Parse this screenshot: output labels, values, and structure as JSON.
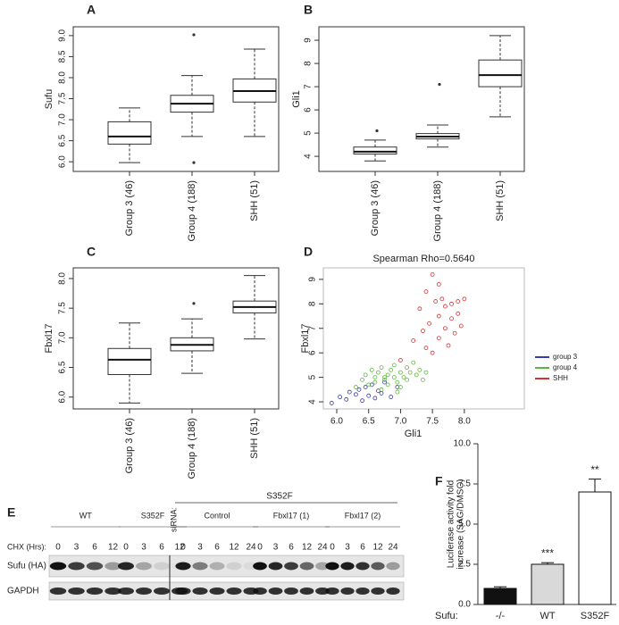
{
  "chart_data": [
    {
      "type": "box",
      "panel": "A",
      "ylabel": "Sufu",
      "categories": [
        "Group 3 (46)",
        "Group 4 (188)",
        "SHH (51)"
      ],
      "boxes": [
        {
          "whisker_low": 5.98,
          "q1": 6.42,
          "median": 6.6,
          "q3": 6.95,
          "whisker_high": 7.28,
          "outliers": []
        },
        {
          "whisker_low": 6.6,
          "q1": 7.18,
          "median": 7.38,
          "q3": 7.58,
          "whisker_high": 8.05,
          "outliers": [
            9.02,
            5.98
          ]
        },
        {
          "whisker_low": 6.6,
          "q1": 7.42,
          "median": 7.68,
          "q3": 7.97,
          "whisker_high": 8.68,
          "outliers": []
        }
      ],
      "ylim": [
        5.77,
        9.21
      ],
      "yticks": [
        {
          "value": 6,
          "label": "6.0"
        },
        6.5,
        {
          "value": 7,
          "label": "7.0"
        },
        7.5,
        {
          "value": 8,
          "label": "8.0"
        },
        8.5,
        {
          "value": 9,
          "label": "9.0"
        }
      ]
    },
    {
      "type": "box",
      "panel": "B",
      "ylabel": "Gli1",
      "categories": [
        "Group 3 (46)",
        "Group 4 (188)",
        "SHH (51)"
      ],
      "boxes": [
        {
          "whisker_low": 3.8,
          "q1": 4.1,
          "median": 4.2,
          "q3": 4.4,
          "whisker_high": 4.7,
          "outliers": [
            5.1
          ]
        },
        {
          "whisker_low": 4.4,
          "q1": 4.75,
          "median": 4.85,
          "q3": 4.98,
          "whisker_high": 5.35,
          "outliers": [
            7.1
          ]
        },
        {
          "whisker_low": 5.7,
          "q1": 7.0,
          "median": 7.5,
          "q3": 8.15,
          "whisker_high": 9.2,
          "outliers": []
        }
      ],
      "ylim": [
        3.35,
        9.58
      ],
      "yticks": [
        4,
        5,
        6,
        7,
        8,
        9
      ]
    },
    {
      "type": "box",
      "panel": "C",
      "ylabel": "Fbxl17",
      "categories": [
        "Group 3 (46)",
        "Group 4 (188)",
        "SHH (51)"
      ],
      "boxes": [
        {
          "whisker_low": 5.9,
          "q1": 6.38,
          "median": 6.63,
          "q3": 6.82,
          "whisker_high": 7.25,
          "outliers": []
        },
        {
          "whisker_low": 6.4,
          "q1": 6.78,
          "median": 6.88,
          "q3": 7.0,
          "whisker_high": 7.32,
          "outliers": [
            7.58
          ]
        },
        {
          "whisker_low": 6.98,
          "q1": 7.42,
          "median": 7.52,
          "q3": 7.62,
          "whisker_high": 8.05,
          "outliers": []
        }
      ],
      "ylim": [
        5.8,
        8.18
      ],
      "yticks": [
        {
          "value": 6,
          "label": "6.0"
        },
        6.5,
        {
          "value": 7,
          "label": "7.0"
        },
        7.5,
        {
          "value": 8,
          "label": "8.0"
        }
      ]
    },
    {
      "type": "scatter",
      "panel": "D",
      "title": "Spearman Rho=0.5640",
      "xlabel": "Gli1",
      "ylabel": "Fbxl17",
      "series": [
        {
          "name": "group 3",
          "color": "#3b3bb3",
          "x": [
            5.92,
            6.05,
            6.15,
            6.2,
            6.3,
            6.35,
            6.4,
            6.45,
            6.5,
            6.55,
            6.6,
            6.65,
            6.7,
            6.75,
            6.85,
            6.95
          ],
          "values": [
            3.95,
            4.2,
            4.1,
            4.4,
            4.3,
            4.5,
            4.05,
            4.6,
            4.25,
            4.7,
            4.15,
            4.45,
            4.35,
            4.8,
            4.2,
            4.6
          ]
        },
        {
          "name": "group 4",
          "color": "#5cb83a",
          "x": [
            6.3,
            6.4,
            6.45,
            6.5,
            6.55,
            6.6,
            6.6,
            6.65,
            6.7,
            6.7,
            6.75,
            6.8,
            6.8,
            6.85,
            6.9,
            6.9,
            6.95,
            7.0,
            7.0,
            7.05,
            7.1,
            7.1,
            7.15,
            7.2,
            7.25,
            7.3,
            7.35,
            7.4,
            6.75,
            6.95
          ],
          "values": [
            4.6,
            4.9,
            5.1,
            4.7,
            5.3,
            4.8,
            5.0,
            5.2,
            4.5,
            5.4,
            4.9,
            5.1,
            4.7,
            5.3,
            5.0,
            5.5,
            4.8,
            5.2,
            4.6,
            5.0,
            5.4,
            4.9,
            5.2,
            5.6,
            5.1,
            5.3,
            4.9,
            5.2,
            5.0,
            4.4
          ]
        },
        {
          "name": "SHH",
          "color": "#d43232",
          "x": [
            7.0,
            7.2,
            7.3,
            7.35,
            7.4,
            7.45,
            7.5,
            7.5,
            7.55,
            7.6,
            7.6,
            7.65,
            7.7,
            7.7,
            7.75,
            7.8,
            7.8,
            7.85,
            7.9,
            7.9,
            7.95,
            8.0,
            7.4,
            7.6
          ],
          "values": [
            5.7,
            6.5,
            7.8,
            6.9,
            8.5,
            7.2,
            9.2,
            6.0,
            8.1,
            7.5,
            6.6,
            8.2,
            7.0,
            7.9,
            6.3,
            8.0,
            7.4,
            6.8,
            8.1,
            7.6,
            7.1,
            8.2,
            6.2,
            8.8
          ]
        }
      ],
      "xlim": [
        5.79,
        8.94
      ],
      "ylim": [
        3.71,
        9.47
      ],
      "xticks": [
        {
          "value": 6,
          "label": "6.0"
        },
        6.5,
        {
          "value": 7,
          "label": "7.0"
        },
        7.5,
        {
          "value": 8,
          "label": "8.0"
        }
      ],
      "yticks": [
        4,
        5,
        6,
        7,
        8,
        9
      ],
      "legend": "right"
    },
    {
      "type": "bar",
      "panel": "F",
      "ylabel": [
        "Luciferase activity fold",
        "increase (SAG/DMSO)"
      ],
      "category_title": "Sufu:",
      "categories": [
        "-/-",
        "WT",
        "S352F"
      ],
      "values": [
        1.0,
        2.5,
        7.0
      ],
      "errors": [
        0.1,
        0.1,
        0.8
      ],
      "colors": [
        "#111111",
        "#d9d9d9",
        "#ffffff"
      ],
      "annotations": [
        {
          "index": 1,
          "text": "***"
        },
        {
          "index": 2,
          "text": "**"
        }
      ],
      "ylim": [
        0,
        10
      ],
      "yticks": [
        {
          "value": 0,
          "label": "0.0"
        },
        2.5,
        {
          "value": 5,
          "label": "5.0"
        },
        7.5,
        {
          "value": 10,
          "label": "10.0"
        }
      ]
    }
  ],
  "blot": {
    "panel": "E",
    "header": "S352F",
    "sirna_label": "siRNA:",
    "time_label": "CHX (Hrs):",
    "groups": [
      {
        "label": "WT",
        "times": [
          "0",
          "3",
          "6",
          "12"
        ]
      },
      {
        "label": "S352F",
        "times": [
          "0",
          "3",
          "6",
          "12"
        ]
      },
      {
        "label": "Control",
        "times": [
          "0",
          "3",
          "6",
          "12",
          "24"
        ]
      },
      {
        "label": "Fbxl17 (1)",
        "times": [
          "0",
          "3",
          "6",
          "12",
          "24"
        ]
      },
      {
        "label": "Fbxl17 (2)",
        "times": [
          "0",
          "3",
          "6",
          "12",
          "24"
        ]
      }
    ],
    "rows": [
      "Sufu (HA)",
      "GAPDH"
    ]
  }
}
